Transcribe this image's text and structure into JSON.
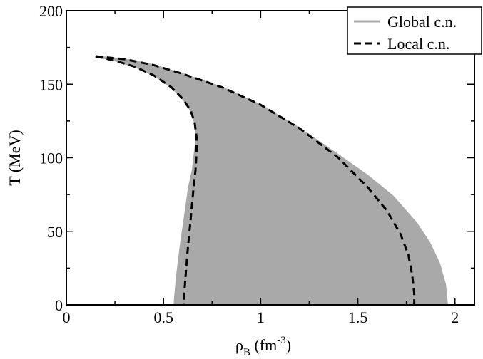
{
  "chart_data": {
    "type": "area",
    "xlabel": {
      "base": "ρ",
      "sub": "B",
      "unit_pre": " (fm",
      "unit_sup": "-3",
      "unit_post": ")"
    },
    "ylabel": "T (MeV)",
    "xlim": [
      0,
      2.1
    ],
    "ylim": [
      0,
      200
    ],
    "xticks": [
      0,
      0.5,
      1,
      1.5,
      2
    ],
    "xtick_labels": [
      "0",
      "0.5",
      "1",
      "1.5",
      "2"
    ],
    "yticks": [
      0,
      50,
      100,
      150,
      200
    ],
    "ytick_labels": [
      "0",
      "50",
      "100",
      "150",
      "200"
    ],
    "legend_position": "top-right",
    "series": [
      {
        "name": "Global c.n.",
        "style": "filled-region",
        "color": "#a9a9a9",
        "left_boundary": [
          [
            0.15,
            169
          ],
          [
            0.25,
            166
          ],
          [
            0.35,
            162
          ],
          [
            0.45,
            156
          ],
          [
            0.54,
            148
          ],
          [
            0.6,
            140
          ],
          [
            0.64,
            132
          ],
          [
            0.66,
            124
          ],
          [
            0.67,
            114
          ],
          [
            0.66,
            104
          ],
          [
            0.65,
            92
          ],
          [
            0.63,
            80
          ],
          [
            0.615,
            66
          ],
          [
            0.6,
            52
          ],
          [
            0.585,
            38
          ],
          [
            0.57,
            22
          ],
          [
            0.56,
            8
          ],
          [
            0.555,
            0
          ]
        ],
        "right_boundary": [
          [
            0.15,
            169
          ],
          [
            0.3,
            167
          ],
          [
            0.45,
            163
          ],
          [
            0.6,
            157
          ],
          [
            0.8,
            148
          ],
          [
            1.0,
            136
          ],
          [
            1.2,
            120
          ],
          [
            1.4,
            102
          ],
          [
            1.55,
            88
          ],
          [
            1.68,
            74
          ],
          [
            1.8,
            56
          ],
          [
            1.87,
            42
          ],
          [
            1.92,
            28
          ],
          [
            1.95,
            14
          ],
          [
            1.96,
            0
          ]
        ]
      },
      {
        "name": "Local c.n.",
        "style": "dashed",
        "color": "#000000",
        "left_branch": [
          [
            0.15,
            169
          ],
          [
            0.25,
            166
          ],
          [
            0.35,
            162
          ],
          [
            0.45,
            156
          ],
          [
            0.54,
            148
          ],
          [
            0.6,
            140
          ],
          [
            0.64,
            132
          ],
          [
            0.66,
            124
          ],
          [
            0.67,
            114
          ],
          [
            0.67,
            104
          ],
          [
            0.665,
            92
          ],
          [
            0.655,
            80
          ],
          [
            0.645,
            66
          ],
          [
            0.635,
            52
          ],
          [
            0.625,
            38
          ],
          [
            0.615,
            22
          ],
          [
            0.607,
            8
          ],
          [
            0.605,
            0
          ]
        ],
        "right_branch": [
          [
            0.15,
            169
          ],
          [
            0.3,
            167
          ],
          [
            0.45,
            163
          ],
          [
            0.6,
            157
          ],
          [
            0.8,
            148
          ],
          [
            1.0,
            136
          ],
          [
            1.2,
            120
          ],
          [
            1.4,
            100
          ],
          [
            1.55,
            80
          ],
          [
            1.65,
            64
          ],
          [
            1.72,
            48
          ],
          [
            1.76,
            34
          ],
          [
            1.78,
            20
          ],
          [
            1.79,
            8
          ],
          [
            1.79,
            0
          ]
        ]
      }
    ]
  }
}
